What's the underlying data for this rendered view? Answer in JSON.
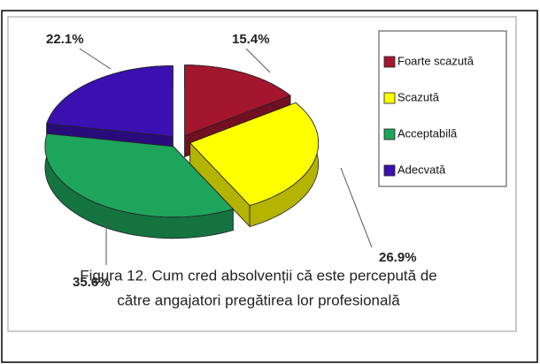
{
  "chart_data": {
    "type": "pie",
    "categories": [
      "Foarte scazută",
      "Scazută",
      "Acceptabilă",
      "Adecvată"
    ],
    "values": [
      15.4,
      26.9,
      35.6,
      22.1
    ],
    "value_labels": [
      "15.4%",
      "26.9%",
      "35.6%",
      "22.1%"
    ],
    "colors": [
      "#a3162e",
      "#ffff00",
      "#1ea55c",
      "#3a10b0"
    ],
    "legend": "right",
    "caption": [
      "Figura 12. Cum cred absolvenții că este percepută de",
      "către angajatori pregătirea lor profesională"
    ]
  }
}
